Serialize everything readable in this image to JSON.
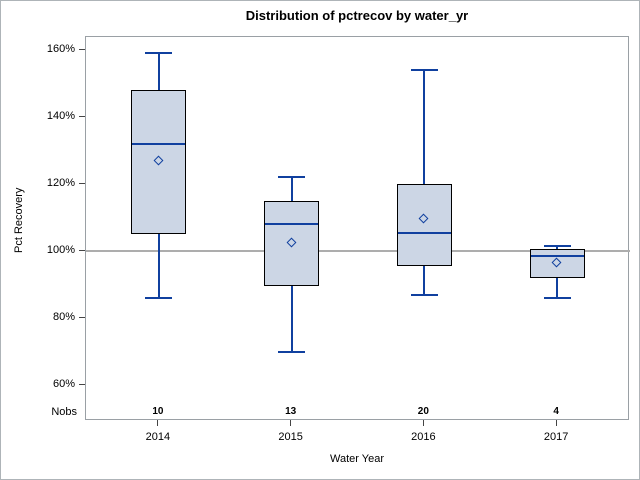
{
  "chart_data": {
    "type": "boxplot",
    "title": "Distribution of pctrecov by water_yr",
    "xlabel": "Water Year",
    "ylabel": "Pct Recovery",
    "ylim": [
      60,
      160
    ],
    "y_ticks": [
      160,
      140,
      120,
      100,
      80,
      60
    ],
    "y_tick_labels": [
      "160%",
      "140%",
      "120%",
      "100%",
      "80%",
      "60%"
    ],
    "reference_line_y": 100,
    "grid": "off",
    "legend": "none",
    "nobs_label": "Nobs",
    "categories": [
      "2014",
      "2015",
      "2016",
      "2017"
    ],
    "boxes": [
      {
        "category": "2014",
        "nobs": 10,
        "whisker_low": 86,
        "q1": 105,
        "median": 132,
        "mean": 127,
        "q3": 148,
        "whisker_high": 159
      },
      {
        "category": "2015",
        "nobs": 13,
        "whisker_low": 70,
        "q1": 89.5,
        "median": 108,
        "mean": 102.5,
        "q3": 115,
        "whisker_high": 122
      },
      {
        "category": "2016",
        "nobs": 20,
        "whisker_low": 87,
        "q1": 95.5,
        "median": 105.5,
        "mean": 109.5,
        "q3": 120,
        "whisker_high": 154
      },
      {
        "category": "2017",
        "nobs": 4,
        "whisker_low": 86,
        "q1": 92,
        "median": 98.5,
        "mean": 96.5,
        "q3": 100.5,
        "whisker_high": 101.5
      }
    ]
  },
  "colors": {
    "box_fill": "#ccd6e5",
    "box_border": "#000000",
    "median_line": "#10409f",
    "whisker": "#10409f",
    "mean_marker": "#10409f",
    "reference_line": "#adadad",
    "plot_border": "#9aa0a5",
    "figure_border": "#aeb4b8",
    "tick_mark": "#444444",
    "text": "#000000"
  }
}
